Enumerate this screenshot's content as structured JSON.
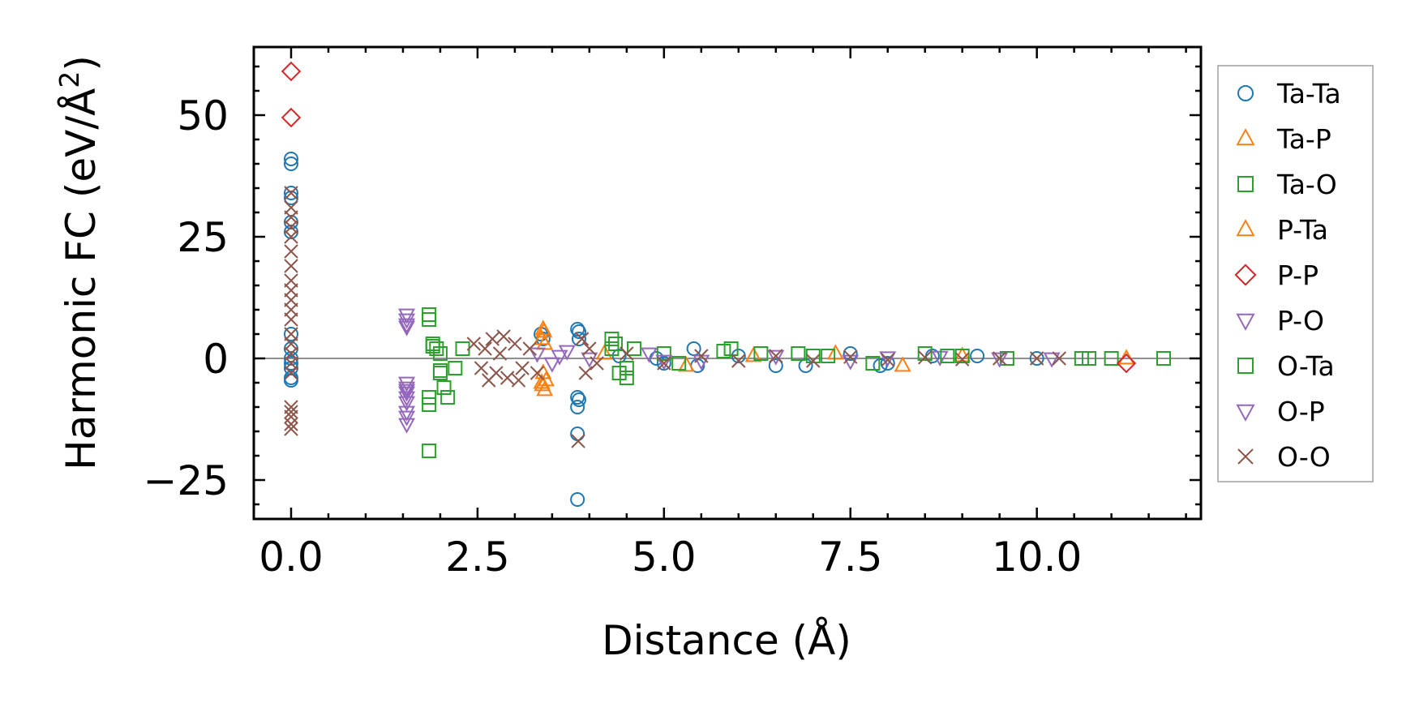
{
  "chart_data": {
    "type": "scatter",
    "xlabel": "Distance (Å)",
    "ylabel_main": "Harmonic FC (eV/Å",
    "ylabel_sup": "2",
    "ylabel_close": ")",
    "xlim": [
      -0.5,
      12.2
    ],
    "ylim": [
      -33,
      64
    ],
    "xticks": [
      0.0,
      2.5,
      5.0,
      7.5,
      10.0
    ],
    "xtick_labels": [
      "0.0",
      "2.5",
      "5.0",
      "7.5",
      "10.0"
    ],
    "yticks": [
      -25,
      0,
      25,
      50
    ],
    "ytick_labels": [
      "−25",
      "0",
      "25",
      "50"
    ],
    "zero_line": true,
    "grid": false,
    "legend_position": "right, outside plot",
    "series": [
      {
        "name": "Ta-Ta",
        "marker": "circle",
        "color": "#1f77b4",
        "points": [
          [
            0,
            41
          ],
          [
            0,
            40
          ],
          [
            0,
            34
          ],
          [
            0,
            33
          ],
          [
            0,
            28
          ],
          [
            0,
            26
          ],
          [
            0,
            5
          ],
          [
            0,
            2
          ],
          [
            0,
            0
          ],
          [
            0,
            -1
          ],
          [
            0,
            -2
          ],
          [
            0,
            -4
          ],
          [
            0,
            -4.5
          ],
          [
            3.35,
            5
          ],
          [
            3.38,
            4
          ],
          [
            3.84,
            6
          ],
          [
            3.86,
            5.5
          ],
          [
            3.86,
            4
          ],
          [
            3.84,
            -8
          ],
          [
            3.84,
            -10
          ],
          [
            3.86,
            -8.5
          ],
          [
            3.84,
            -15.5
          ],
          [
            3.84,
            -29
          ],
          [
            4.4,
            0.5
          ],
          [
            4.9,
            0
          ],
          [
            5.0,
            -1
          ],
          [
            5.4,
            2
          ],
          [
            5.45,
            -1.5
          ],
          [
            6.0,
            0.5
          ],
          [
            6.5,
            -1.5
          ],
          [
            6.9,
            -1.5
          ],
          [
            7.5,
            1
          ],
          [
            7.9,
            -1.5
          ],
          [
            8.0,
            -1
          ],
          [
            8.6,
            0.5
          ],
          [
            9.2,
            0.5
          ],
          [
            10.0,
            0
          ]
        ]
      },
      {
        "name": "Ta-P",
        "marker": "triangle-up",
        "color": "#ff7f0e",
        "points": [
          [
            3.38,
            6
          ],
          [
            3.36,
            4
          ],
          [
            3.4,
            3
          ],
          [
            3.38,
            -3
          ],
          [
            3.36,
            -5
          ],
          [
            3.4,
            -6.5
          ],
          [
            3.42,
            -4.5
          ],
          [
            4.2,
            1
          ],
          [
            5.3,
            -1.5
          ],
          [
            6.2,
            0.5
          ],
          [
            7.3,
            1
          ],
          [
            8.2,
            -1.5
          ],
          [
            9.0,
            0.5
          ],
          [
            11.2,
            0
          ]
        ]
      },
      {
        "name": "Ta-O",
        "marker": "square",
        "color": "#2ca02c",
        "points": [
          [
            1.85,
            9
          ],
          [
            1.85,
            8
          ],
          [
            1.85,
            -8
          ],
          [
            1.85,
            -9.5
          ],
          [
            1.85,
            -19
          ],
          [
            1.9,
            3
          ],
          [
            1.95,
            2
          ],
          [
            2.0,
            -3
          ],
          [
            2.05,
            -6
          ],
          [
            2.1,
            -8
          ],
          [
            2.0,
            1
          ],
          [
            2.2,
            -2
          ],
          [
            2.3,
            2
          ],
          [
            4.3,
            4
          ],
          [
            4.35,
            3
          ],
          [
            4.4,
            -3
          ],
          [
            4.5,
            -4
          ],
          [
            4.6,
            2
          ],
          [
            5.0,
            1
          ],
          [
            5.2,
            -1
          ],
          [
            5.9,
            2
          ],
          [
            6.3,
            1
          ],
          [
            6.8,
            1
          ],
          [
            7.2,
            0.5
          ],
          [
            7.8,
            -1
          ],
          [
            8.5,
            1
          ],
          [
            9.0,
            0.5
          ],
          [
            9.6,
            0
          ],
          [
            10.6,
            0
          ],
          [
            11.0,
            0
          ],
          [
            11.7,
            0
          ]
        ]
      },
      {
        "name": "P-Ta",
        "marker": "triangle-up",
        "color": "#ff7f0e",
        "points": [
          [
            3.39,
            5.5
          ],
          [
            3.37,
            -5.5
          ]
        ]
      },
      {
        "name": "P-P",
        "marker": "diamond",
        "color": "#d62728",
        "points": [
          [
            0,
            59
          ],
          [
            0,
            49.5
          ],
          [
            11.2,
            -1
          ]
        ]
      },
      {
        "name": "P-O",
        "marker": "triangle-down",
        "color": "#9467bd",
        "points": [
          [
            1.55,
            9
          ],
          [
            1.55,
            8
          ],
          [
            1.55,
            7
          ],
          [
            1.55,
            -5
          ],
          [
            1.55,
            -6
          ],
          [
            1.55,
            -7
          ],
          [
            1.55,
            -8
          ],
          [
            1.55,
            -9
          ],
          [
            1.55,
            -11
          ],
          [
            1.55,
            -12
          ],
          [
            1.55,
            -13.5
          ],
          [
            3.3,
            1
          ],
          [
            3.5,
            -1
          ],
          [
            3.7,
            1.5
          ],
          [
            4.0,
            0
          ],
          [
            4.8,
            1
          ],
          [
            5.5,
            -0.5
          ],
          [
            6.5,
            0.5
          ],
          [
            7.5,
            -0.5
          ],
          [
            8.7,
            0.3
          ],
          [
            9.5,
            0
          ],
          [
            10.2,
            0
          ]
        ]
      },
      {
        "name": "O-Ta",
        "marker": "square",
        "color": "#2ca02c",
        "points": [
          [
            1.9,
            2.5
          ],
          [
            2.0,
            -2.5
          ],
          [
            4.3,
            2
          ],
          [
            4.5,
            -2
          ],
          [
            5.8,
            1.5
          ],
          [
            7.0,
            0.5
          ],
          [
            8.8,
            0.5
          ],
          [
            10.7,
            0
          ]
        ]
      },
      {
        "name": "O-P",
        "marker": "triangle-down",
        "color": "#9467bd",
        "points": [
          [
            1.55,
            6.5
          ],
          [
            1.55,
            -6.5
          ],
          [
            3.6,
            0.5
          ],
          [
            5.0,
            -0.5
          ],
          [
            8.0,
            0.2
          ]
        ]
      },
      {
        "name": "O-O",
        "marker": "x",
        "color": "#8c564b",
        "points": [
          [
            0,
            34
          ],
          [
            0,
            31
          ],
          [
            0,
            29
          ],
          [
            0,
            27
          ],
          [
            0,
            25
          ],
          [
            0,
            22
          ],
          [
            0,
            19
          ],
          [
            0,
            16
          ],
          [
            0,
            14
          ],
          [
            0,
            12
          ],
          [
            0,
            10
          ],
          [
            0,
            8
          ],
          [
            0,
            5
          ],
          [
            0,
            3
          ],
          [
            0,
            1
          ],
          [
            0,
            -1
          ],
          [
            0,
            -3
          ],
          [
            0,
            -10
          ],
          [
            0,
            -11
          ],
          [
            0,
            -12
          ],
          [
            0,
            -13.5
          ],
          [
            0,
            -14.5
          ],
          [
            2.45,
            3
          ],
          [
            2.55,
            -2
          ],
          [
            2.6,
            2
          ],
          [
            2.7,
            4
          ],
          [
            2.75,
            -3
          ],
          [
            2.8,
            1
          ],
          [
            2.9,
            -4
          ],
          [
            3.0,
            3
          ],
          [
            3.1,
            -2
          ],
          [
            3.2,
            2
          ],
          [
            3.3,
            -3
          ],
          [
            2.65,
            -4.5
          ],
          [
            2.85,
            4.5
          ],
          [
            3.05,
            -4.5
          ],
          [
            3.9,
            4
          ],
          [
            3.95,
            -3
          ],
          [
            3.85,
            -17
          ],
          [
            4.0,
            2
          ],
          [
            4.1,
            -1
          ],
          [
            4.5,
            1
          ],
          [
            5.0,
            -1
          ],
          [
            5.5,
            0.5
          ],
          [
            6.0,
            -0.5
          ],
          [
            6.5,
            0.5
          ],
          [
            7.0,
            -0.5
          ],
          [
            7.5,
            0.3
          ],
          [
            8.0,
            -0.3
          ],
          [
            8.5,
            0.2
          ],
          [
            9.0,
            -0.2
          ],
          [
            9.5,
            0
          ],
          [
            10.0,
            0
          ],
          [
            10.3,
            0
          ]
        ]
      }
    ]
  }
}
